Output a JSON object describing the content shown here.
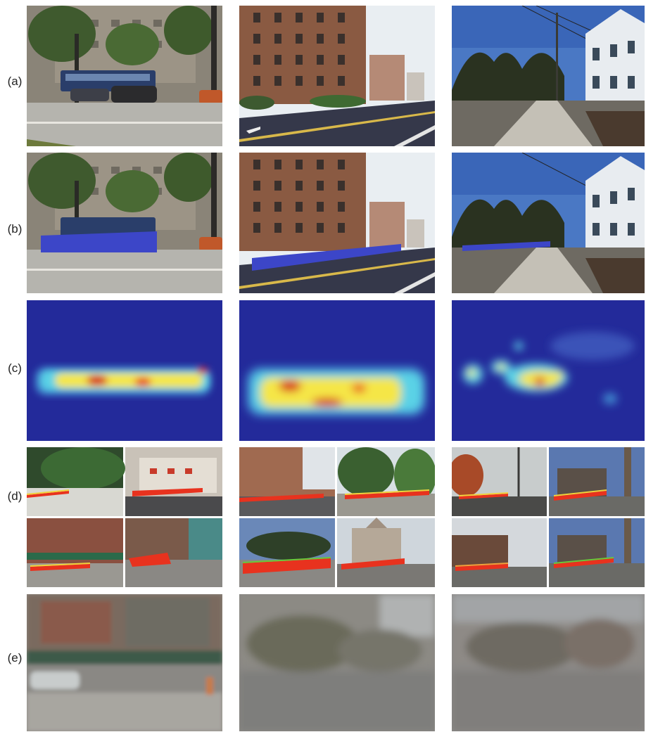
{
  "figure": {
    "rows": [
      {
        "label": "(a)",
        "panels": [
          "street-scene-palm-trees",
          "street-scene-brick-apartments",
          "street-scene-white-house-sidewalk"
        ]
      },
      {
        "label": "(b)",
        "panels": [
          "palm-street-with-blue-overlay",
          "brick-street-with-blue-overlay",
          "house-street-with-blue-overlay"
        ]
      },
      {
        "label": "(c)",
        "panels": [
          "heatmap",
          "heatmap",
          "heatmap"
        ]
      },
      {
        "label": "(d)",
        "panels": [
          "retrieval-collage",
          "retrieval-collage",
          "retrieval-collage"
        ]
      },
      {
        "label": "(e)",
        "panels": [
          "average-image",
          "average-image",
          "average-image"
        ]
      }
    ],
    "colors": {
      "overlay_blue": "#3c46c8",
      "heat_background": "#232a9a",
      "heat_cyan": "#5ad2e6",
      "heat_yellow": "#f5e646",
      "heat_red": "#d7141e",
      "path_red": "#e8321e",
      "path_yellow": "#f0d23c"
    }
  }
}
